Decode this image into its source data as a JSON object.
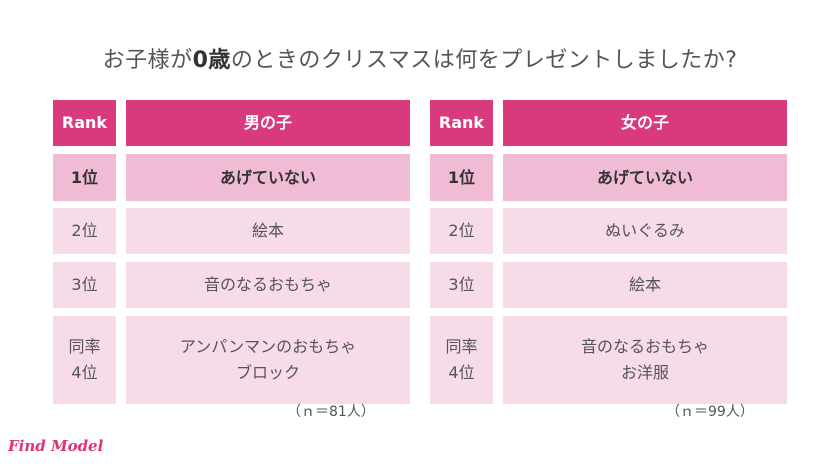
{
  "title": {
    "prefix": "お子様が",
    "emphasis": "0歳",
    "suffix": "のときのクリスマスは何をプレゼントしましたか?"
  },
  "tables": [
    {
      "header": {
        "rank": "Rank",
        "item": "男の子"
      },
      "rows": [
        {
          "rank": "1位",
          "items": [
            "あげていない"
          ]
        },
        {
          "rank": "2位",
          "items": [
            "絵本"
          ]
        },
        {
          "rank": "3位",
          "items": [
            "音のなるおもちゃ"
          ]
        },
        {
          "rank_lines": [
            "同率",
            "4位"
          ],
          "items": [
            "アンパンマンのおもちゃ",
            "ブロック"
          ]
        }
      ],
      "note": "（ｎ＝81人）"
    },
    {
      "header": {
        "rank": "Rank",
        "item": "女の子"
      },
      "rows": [
        {
          "rank": "1位",
          "items": [
            "あげていない"
          ]
        },
        {
          "rank": "2位",
          "items": [
            "ぬいぐるみ"
          ]
        },
        {
          "rank": "3位",
          "items": [
            "絵本"
          ]
        },
        {
          "rank_lines": [
            "同率",
            "4位"
          ],
          "items": [
            "音のなるおもちゃ",
            "お洋服"
          ]
        }
      ],
      "note": "（ｎ＝99人）"
    }
  ],
  "logo": "Find Model",
  "colors": {
    "header": "#d93a7e",
    "first_row": "#f0bcd5",
    "row": "#f7dbe8",
    "logo": "#e0307a"
  }
}
